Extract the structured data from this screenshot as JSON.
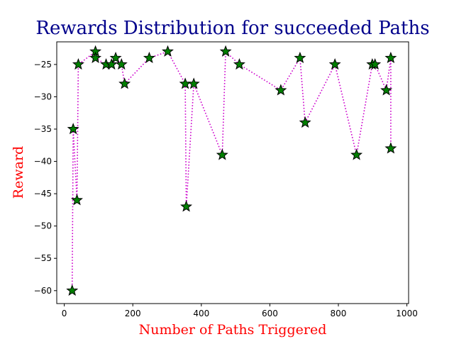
{
  "chart_data": {
    "type": "line",
    "title": "Rewards Distribution for succeeded Paths",
    "xlabel": "Number of Paths Triggered",
    "ylabel": "Reward",
    "xlim": [
      -22,
      1005
    ],
    "ylim": [
      -62,
      -21.5
    ],
    "xticks": [
      0,
      200,
      400,
      600,
      800,
      1000
    ],
    "yticks": [
      -60,
      -55,
      -50,
      -45,
      -40,
      -35,
      -30,
      -25
    ],
    "grid": false,
    "legend": "none",
    "colors": {
      "title": "#00008b",
      "axis_label": "#ff0000",
      "line": "#cc00cc",
      "marker_fill": "#008000",
      "marker_edge": "#000000"
    },
    "series": [
      {
        "line_style": "dotted",
        "marker": "star",
        "points": [
          {
            "x": 23,
            "y": -60
          },
          {
            "x": 26,
            "y": -35
          },
          {
            "x": 37,
            "y": -46
          },
          {
            "x": 41,
            "y": -25
          },
          {
            "x": 91,
            "y": -23
          },
          {
            "x": 91,
            "y": -24
          },
          {
            "x": 122,
            "y": -25
          },
          {
            "x": 138,
            "y": -25
          },
          {
            "x": 150,
            "y": -24
          },
          {
            "x": 167,
            "y": -25
          },
          {
            "x": 176,
            "y": -28
          },
          {
            "x": 248,
            "y": -24
          },
          {
            "x": 302,
            "y": -23
          },
          {
            "x": 353,
            "y": -28
          },
          {
            "x": 356,
            "y": -47
          },
          {
            "x": 378,
            "y": -28
          },
          {
            "x": 461,
            "y": -39
          },
          {
            "x": 471,
            "y": -23
          },
          {
            "x": 511,
            "y": -25
          },
          {
            "x": 632,
            "y": -29
          },
          {
            "x": 688,
            "y": -24
          },
          {
            "x": 703,
            "y": -34
          },
          {
            "x": 790,
            "y": -25
          },
          {
            "x": 853,
            "y": -39
          },
          {
            "x": 899,
            "y": -25
          },
          {
            "x": 907,
            "y": -25
          },
          {
            "x": 940,
            "y": -29
          },
          {
            "x": 953,
            "y": -24
          },
          {
            "x": 953,
            "y": -38
          }
        ]
      }
    ]
  }
}
